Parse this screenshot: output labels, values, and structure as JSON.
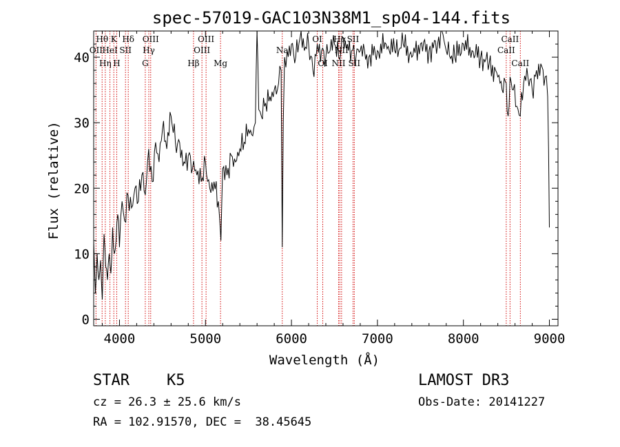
{
  "chart_data": {
    "type": "line",
    "title": "spec-57019-GAC103N38M1_sp04-144.fits",
    "xlabel": "Wavelength (Å)",
    "ylabel": "Flux (relative)",
    "xlim": [
      3700,
      9100
    ],
    "ylim": [
      -1,
      44
    ],
    "xticks": [
      4000,
      5000,
      6000,
      7000,
      8000,
      9000
    ],
    "yticks": [
      0,
      10,
      20,
      30,
      40
    ],
    "series": [
      {
        "name": "spectrum",
        "x": [
          3700,
          3720,
          3740,
          3760,
          3780,
          3800,
          3820,
          3840,
          3860,
          3880,
          3900,
          3920,
          3940,
          3960,
          3980,
          4000,
          4030,
          4060,
          4100,
          4140,
          4180,
          4220,
          4260,
          4300,
          4340,
          4380,
          4420,
          4460,
          4500,
          4550,
          4600,
          4650,
          4700,
          4750,
          4800,
          4850,
          4900,
          4950,
          5000,
          5050,
          5100,
          5150,
          5180,
          5200,
          5250,
          5300,
          5350,
          5400,
          5450,
          5500,
          5550,
          5580,
          5600,
          5620,
          5650,
          5700,
          5750,
          5800,
          5850,
          5880,
          5893,
          5905,
          5920,
          5950,
          6000,
          6050,
          6100,
          6150,
          6200,
          6250,
          6300,
          6350,
          6400,
          6450,
          6500,
          6550,
          6600,
          6650,
          6700,
          6750,
          6800,
          6900,
          7000,
          7100,
          7200,
          7300,
          7400,
          7500,
          7600,
          7700,
          7750,
          7800,
          7900,
          8000,
          8100,
          8200,
          8300,
          8400,
          8450,
          8498,
          8520,
          8542,
          8580,
          8662,
          8700,
          8750,
          8800,
          8850,
          8900,
          8950,
          8980,
          9000
        ],
        "y": [
          12,
          4,
          10,
          6,
          9,
          3,
          13,
          8,
          6,
          10,
          7,
          14,
          10,
          12,
          16,
          11,
          18,
          15,
          19,
          17,
          20,
          18,
          22,
          19,
          26,
          21,
          27,
          24,
          29,
          26,
          31,
          27,
          27,
          24,
          25,
          23,
          22,
          21,
          24,
          20,
          21,
          18,
          12,
          23,
          22,
          25,
          24,
          26,
          27,
          29,
          28,
          30,
          44,
          32,
          31,
          33,
          34,
          35,
          36,
          38,
          11,
          30,
          40,
          41,
          42,
          40,
          43,
          41,
          42,
          38,
          42,
          41,
          40,
          41,
          42,
          40,
          43,
          42,
          41,
          40,
          41,
          40,
          41,
          42,
          41,
          42,
          40,
          42,
          41,
          42,
          44,
          41,
          40,
          42,
          41,
          40,
          39,
          37,
          35,
          36,
          31,
          37,
          35,
          31,
          36,
          37,
          35,
          38,
          39,
          37,
          34,
          14
        ]
      }
    ],
    "lines": [
      {
        "label": "Hθ",
        "x": 3798,
        "row": 1
      },
      {
        "label": "OII",
        "x": 3727,
        "row": 2
      },
      {
        "label": "Hη",
        "x": 3835,
        "row": 3
      },
      {
        "label": "K",
        "x": 3934,
        "row": 1
      },
      {
        "label": "HeI",
        "x": 3889,
        "row": 2
      },
      {
        "label": "H",
        "x": 3968,
        "row": 3
      },
      {
        "label": "Hδ",
        "x": 4102,
        "row": 1
      },
      {
        "label": "SII",
        "x": 4070,
        "row": 2
      },
      {
        "label": "OIII",
        "x": 4363,
        "row": 1
      },
      {
        "label": "Hγ",
        "x": 4341,
        "row": 2
      },
      {
        "label": "G",
        "x": 4300,
        "row": 3
      },
      {
        "label": "Hβ",
        "x": 4861,
        "row": 3
      },
      {
        "label": "OIII",
        "x": 4959,
        "row": 2
      },
      {
        "label": "OIII",
        "x": 5007,
        "row": 1
      },
      {
        "label": "Mg",
        "x": 5175,
        "row": 3
      },
      {
        "label": "Na",
        "x": 5893,
        "row": 2
      },
      {
        "label": "OI",
        "x": 6300,
        "row": 1
      },
      {
        "label": "OI",
        "x": 6364,
        "row": 3
      },
      {
        "label": "Hα",
        "x": 6563,
        "row": 1
      },
      {
        "label": "NII",
        "x": 6548,
        "row": 3
      },
      {
        "label": "NII",
        "x": 6583,
        "row": 2
      },
      {
        "label": "SII",
        "x": 6716,
        "row": 1
      },
      {
        "label": "SII",
        "x": 6731,
        "row": 3
      },
      {
        "label": "CaII",
        "x": 8498,
        "row": 2
      },
      {
        "label": "CaII",
        "x": 8542,
        "row": 1
      },
      {
        "label": "CaII",
        "x": 8662,
        "row": 3
      }
    ]
  },
  "info": {
    "object_class": "STAR",
    "subclass": "K5",
    "survey": "LAMOST DR3",
    "cz": "cz = 26.3 ± 25.6 km/s",
    "obs_date": "Obs-Date: 20141227",
    "coords": "RA = 102.91570, DEC =  38.45645"
  }
}
